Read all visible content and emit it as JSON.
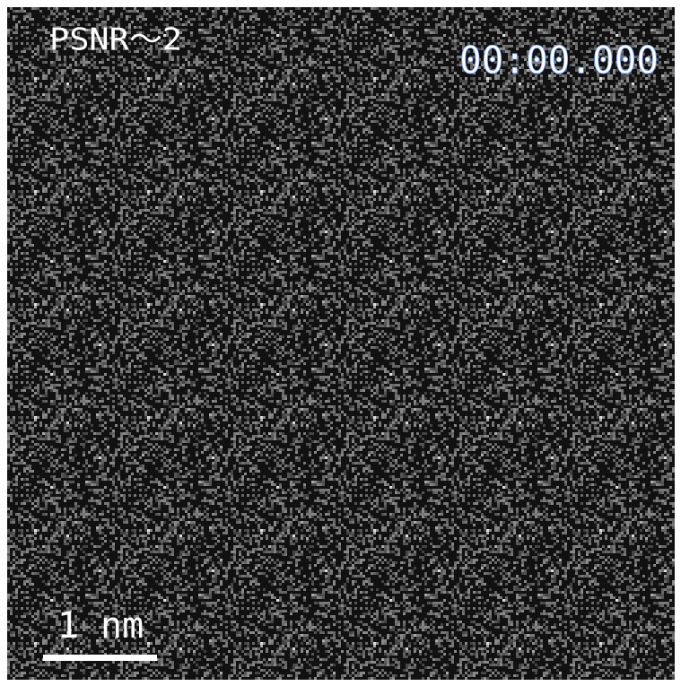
{
  "overlay": {
    "label": "PSNR～2",
    "timestamp": "00:00.000",
    "scale_bar": "1 nm"
  }
}
